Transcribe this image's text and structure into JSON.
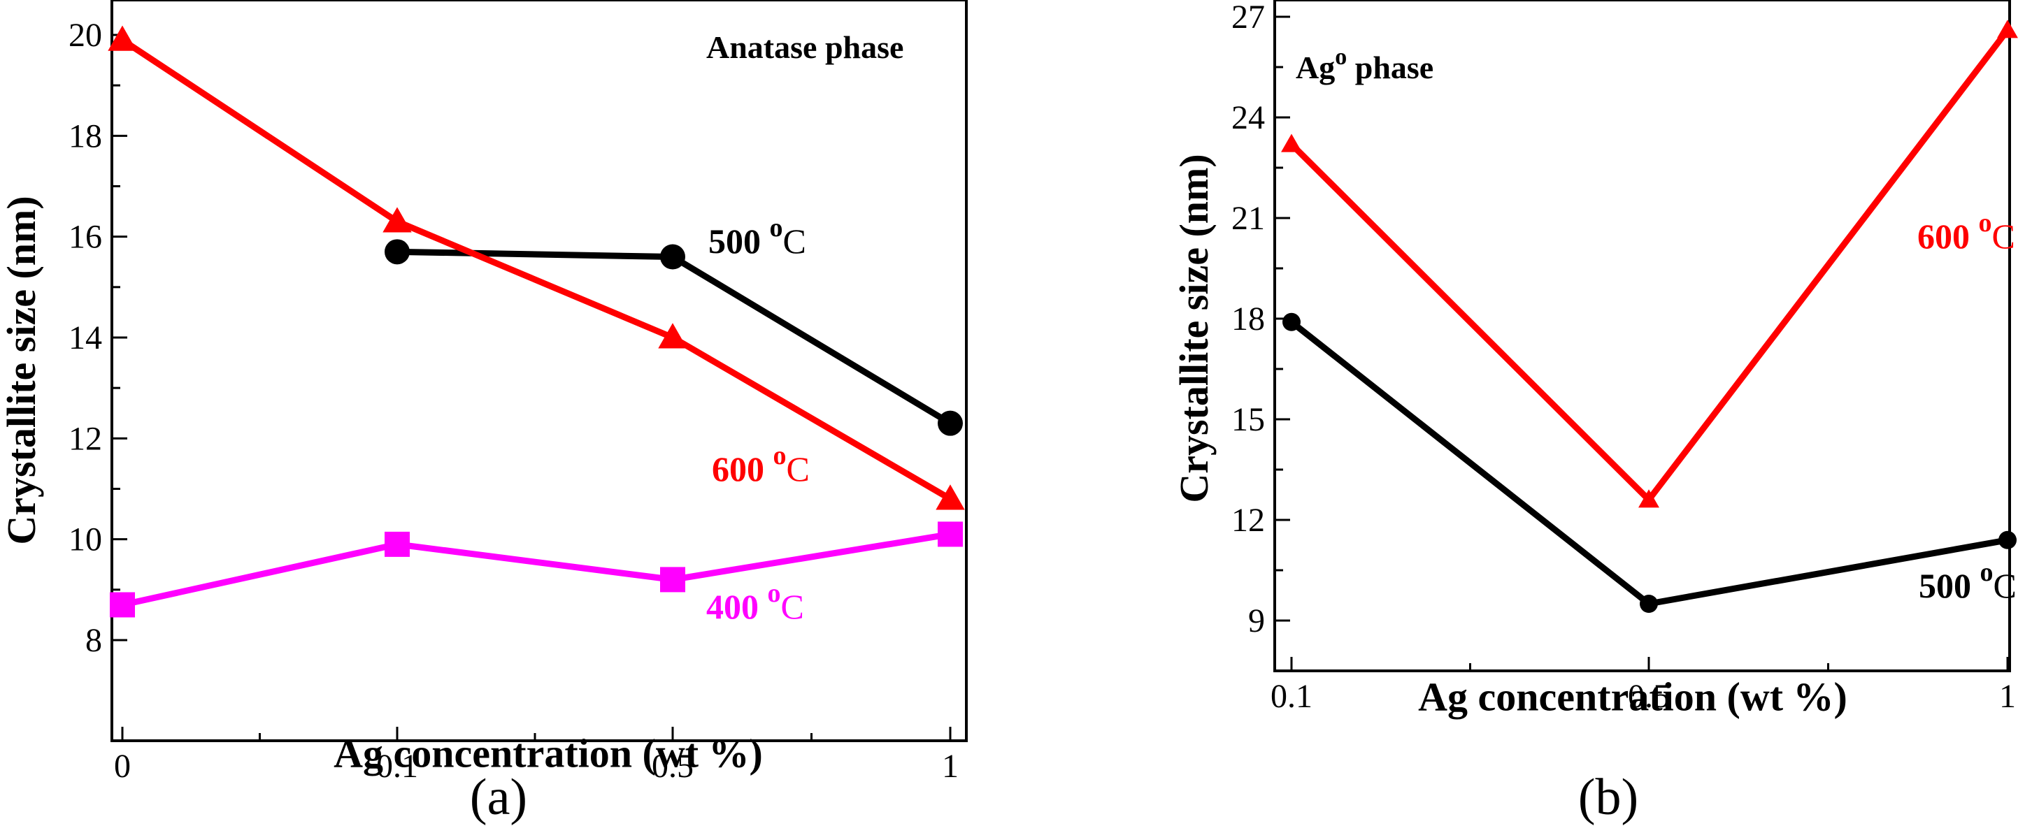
{
  "chart_data": [
    {
      "type": "line",
      "panel": "(a)",
      "annotation": "Anatase phase",
      "xlabel": "Ag concentration (wt %)",
      "ylabel": "Crystallite size  (nm)",
      "categories": [
        "0",
        "0.1",
        "0.5",
        "1"
      ],
      "ylim": [
        8,
        20
      ],
      "yticks": [
        8,
        10,
        12,
        14,
        16,
        18,
        20
      ],
      "grid": false,
      "series": [
        {
          "name": "500 oC",
          "label_main": "500 ",
          "label_sup": "o",
          "label_end": "C",
          "color": "#000000",
          "marker": "circle",
          "values": [
            null,
            15.7,
            15.6,
            12.3
          ]
        },
        {
          "name": "600 oC",
          "label_main": "600 ",
          "label_sup": "o",
          "label_end": "C",
          "color": "#ff0000",
          "marker": "triangle",
          "values": [
            19.9,
            16.3,
            14.0,
            10.8
          ]
        },
        {
          "name": "400 oC",
          "label_main": "400 ",
          "label_sup": "o",
          "label_end": "C",
          "color": "#ff00ff",
          "marker": "square",
          "values": [
            8.7,
            9.9,
            9.2,
            10.1
          ]
        }
      ]
    },
    {
      "type": "line",
      "panel": "(b)",
      "annotation_main": "Ag",
      "annotation_sup": "o",
      "annotation_end": " phase",
      "xlabel": "Ag concentration (wt %)",
      "ylabel": "Crystallite size (nm)",
      "categories": [
        "0.1",
        "0.5",
        "1"
      ],
      "ylim": [
        7.5,
        27.5
      ],
      "yticks": [
        9,
        12,
        15,
        18,
        21,
        24,
        27
      ],
      "grid": false,
      "series": [
        {
          "name": "600 oC",
          "label_main": "600 ",
          "label_sup": "o",
          "label_end": "C",
          "color": "#ff0000",
          "marker": "triangle",
          "values": [
            23.2,
            12.6,
            26.6
          ]
        },
        {
          "name": "500 oC",
          "label_main": "500 ",
          "label_sup": "o",
          "label_end": "C",
          "color": "#000000",
          "marker": "circle",
          "values": [
            17.9,
            9.5,
            11.4
          ]
        }
      ]
    }
  ]
}
